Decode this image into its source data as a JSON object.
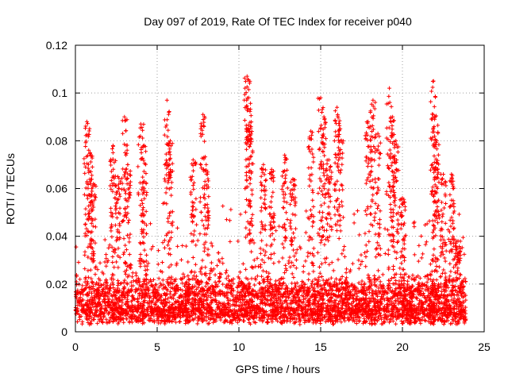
{
  "chart_data": {
    "type": "scatter",
    "title": "Day 097 of 2019, Rate Of TEC Index for receiver p040",
    "xlabel": "GPS time / hours",
    "ylabel": "ROTI / TECUs",
    "xlim": [
      0,
      25
    ],
    "ylim": [
      0,
      0.12
    ],
    "xticks": [
      0,
      5,
      10,
      15,
      20,
      25
    ],
    "yticks": [
      0,
      0.02,
      0.04,
      0.06,
      0.08,
      0.1,
      0.12
    ],
    "xtick_labels": [
      "0",
      "5",
      "10",
      "15",
      "20",
      "25"
    ],
    "ytick_labels": [
      "0",
      "0.02",
      "0.04",
      "0.06",
      "0.08",
      "0.1",
      "0.12"
    ],
    "grid": true,
    "marker": "+",
    "color": "#ff0000",
    "data_extent_hours": [
      0,
      23.9
    ],
    "baseline_range": [
      0.003,
      0.03
    ],
    "spikes": [
      {
        "x": 0.7,
        "y": 0.088
      },
      {
        "x": 0.9,
        "y": 0.075
      },
      {
        "x": 1.1,
        "y": 0.062
      },
      {
        "x": 2.3,
        "y": 0.078
      },
      {
        "x": 2.6,
        "y": 0.065
      },
      {
        "x": 3.0,
        "y": 0.09
      },
      {
        "x": 3.2,
        "y": 0.07
      },
      {
        "x": 4.0,
        "y": 0.087
      },
      {
        "x": 4.2,
        "y": 0.078
      },
      {
        "x": 5.6,
        "y": 0.097
      },
      {
        "x": 5.8,
        "y": 0.08
      },
      {
        "x": 7.2,
        "y": 0.072
      },
      {
        "x": 7.8,
        "y": 0.091
      },
      {
        "x": 8.0,
        "y": 0.07
      },
      {
        "x": 10.5,
        "y": 0.107
      },
      {
        "x": 10.6,
        "y": 0.098
      },
      {
        "x": 10.7,
        "y": 0.086
      },
      {
        "x": 11.5,
        "y": 0.07
      },
      {
        "x": 12.0,
        "y": 0.068
      },
      {
        "x": 12.8,
        "y": 0.074
      },
      {
        "x": 13.3,
        "y": 0.064
      },
      {
        "x": 14.4,
        "y": 0.084
      },
      {
        "x": 15.0,
        "y": 0.098
      },
      {
        "x": 15.2,
        "y": 0.09
      },
      {
        "x": 15.5,
        "y": 0.072
      },
      {
        "x": 16.0,
        "y": 0.094
      },
      {
        "x": 16.2,
        "y": 0.085
      },
      {
        "x": 17.9,
        "y": 0.088
      },
      {
        "x": 18.2,
        "y": 0.097
      },
      {
        "x": 18.5,
        "y": 0.083
      },
      {
        "x": 19.2,
        "y": 0.102
      },
      {
        "x": 19.4,
        "y": 0.09
      },
      {
        "x": 19.6,
        "y": 0.08
      },
      {
        "x": 20.0,
        "y": 0.056
      },
      {
        "x": 21.9,
        "y": 0.105
      },
      {
        "x": 22.0,
        "y": 0.09
      },
      {
        "x": 22.1,
        "y": 0.08
      },
      {
        "x": 22.5,
        "y": 0.066
      },
      {
        "x": 23.0,
        "y": 0.066
      },
      {
        "x": 23.4,
        "y": 0.038
      }
    ]
  }
}
